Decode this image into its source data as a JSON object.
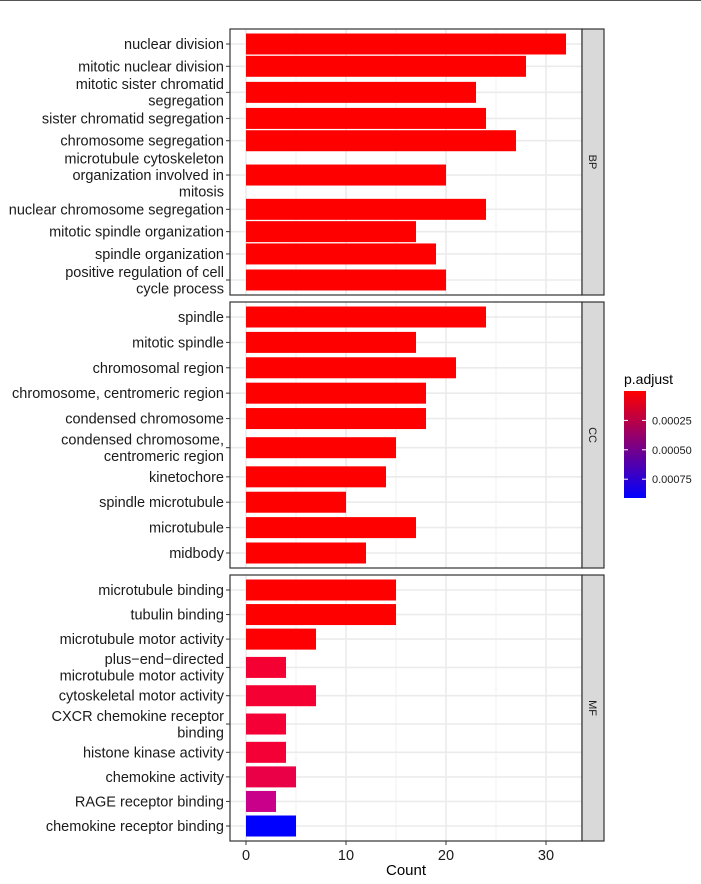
{
  "chart_data": {
    "type": "bar",
    "orientation": "horizontal",
    "facets": [
      {
        "name": "BP",
        "categories": [
          [
            "nuclear division"
          ],
          [
            "mitotic nuclear division"
          ],
          [
            "mitotic sister chromatid",
            "segregation"
          ],
          [
            "sister chromatid segregation"
          ],
          [
            "chromosome segregation"
          ],
          [
            "microtubule cytoskeleton",
            "organization involved in",
            "mitosis"
          ],
          [
            "nuclear chromosome segregation"
          ],
          [
            "mitotic spindle organization"
          ],
          [
            "spindle organization"
          ],
          [
            "positive regulation of cell",
            "cycle process"
          ]
        ],
        "values": [
          32,
          28,
          23,
          24,
          27,
          20,
          24,
          17,
          19,
          20
        ],
        "colors": [
          "#ff0000",
          "#ff0000",
          "#ff0000",
          "#ff0000",
          "#ff0000",
          "#ff0000",
          "#ff0000",
          "#ff0000",
          "#ff0000",
          "#ff0000"
        ]
      },
      {
        "name": "CC",
        "categories": [
          [
            "spindle"
          ],
          [
            "mitotic spindle"
          ],
          [
            "chromosomal region"
          ],
          [
            "chromosome, centromeric region"
          ],
          [
            "condensed chromosome"
          ],
          [
            "condensed chromosome,",
            "centromeric region"
          ],
          [
            "kinetochore"
          ],
          [
            "spindle microtubule"
          ],
          [
            "microtubule"
          ],
          [
            "midbody"
          ]
        ],
        "values": [
          24,
          17,
          21,
          18,
          18,
          15,
          14,
          10,
          17,
          12
        ],
        "colors": [
          "#ff0000",
          "#ff0000",
          "#ff0000",
          "#ff0000",
          "#ff0000",
          "#ff0000",
          "#ff0000",
          "#ff0000",
          "#ff0000",
          "#ff0000"
        ]
      },
      {
        "name": "MF",
        "categories": [
          [
            "microtubule binding"
          ],
          [
            "tubulin binding"
          ],
          [
            "microtubule motor activity"
          ],
          [
            "plus−end−directed",
            "microtubule motor activity"
          ],
          [
            "cytoskeletal motor activity"
          ],
          [
            "CXCR chemokine receptor",
            "binding"
          ],
          [
            "histone kinase activity"
          ],
          [
            "chemokine activity"
          ],
          [
            "RAGE receptor binding"
          ],
          [
            "chemokine receptor binding"
          ]
        ],
        "values": [
          15,
          15,
          7,
          4,
          7,
          4,
          4,
          5,
          3,
          5
        ],
        "colors": [
          "#ff0000",
          "#ff0000",
          "#fe0003",
          "#f50033",
          "#f50033",
          "#f40036",
          "#f40036",
          "#ea0047",
          "#c8008a",
          "#0000ff"
        ]
      }
    ],
    "xlabel": "Count",
    "ylabel": "",
    "xlim": [
      -1.6,
      33.6
    ],
    "xticks": [
      "0",
      "10",
      "20",
      "30"
    ],
    "grid": true,
    "legend": {
      "title": "p.adjust",
      "placement": "right",
      "ticks": [
        "0.00025",
        "0.00050",
        "0.00075"
      ],
      "range": [
        0.0,
        0.00091
      ],
      "color_low": "#ff0000",
      "color_high": "#0000ff"
    }
  }
}
